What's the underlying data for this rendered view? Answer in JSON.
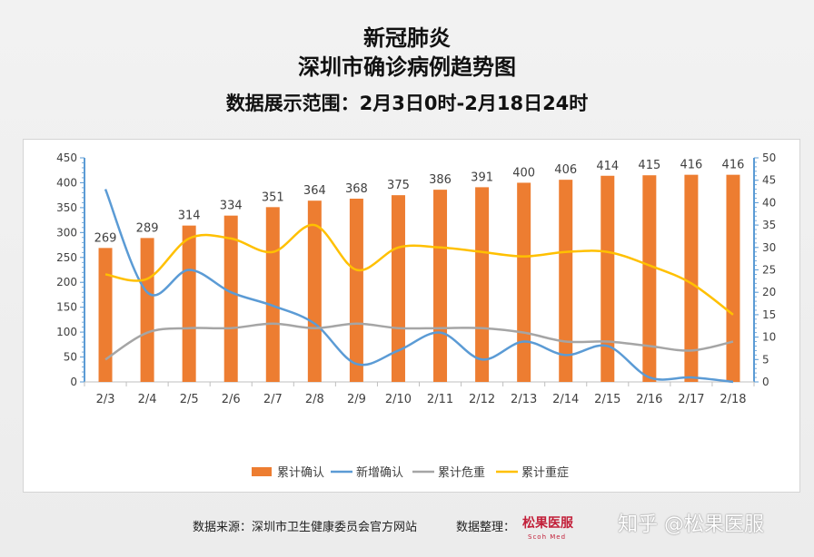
{
  "header": {
    "title_line1": "新冠肺炎",
    "title_line2": "深圳市确诊病例趋势图",
    "subtitle": "数据展示范围：2月3日0时-2月18日24时"
  },
  "footer": {
    "source": "数据来源：深圳市卫生健康委员会官方网站",
    "compiled": "数据整理：",
    "logo_text": "松果医服",
    "logo_sub": "Scoh Med",
    "watermark": "知乎 @松果医服"
  },
  "colors": {
    "cumulative_confirmed": "#ed7d31",
    "new_confirmed": "#5b9bd5",
    "cumulative_critical": "#a5a5a5",
    "cumulative_severe": "#ffc000",
    "axis": "#5b9bd5"
  },
  "chart_data": {
    "type": "bar",
    "categories": [
      "2/3",
      "2/4",
      "2/5",
      "2/6",
      "2/7",
      "2/8",
      "2/9",
      "2/10",
      "2/11",
      "2/12",
      "2/13",
      "2/14",
      "2/15",
      "2/16",
      "2/17",
      "2/18"
    ],
    "y_left": {
      "range": [
        0,
        450
      ],
      "ticks": [
        "0",
        "50",
        "100",
        "150",
        "200",
        "250",
        "300",
        "350",
        "400",
        "450"
      ]
    },
    "y_right": {
      "range": [
        0,
        50
      ],
      "ticks": [
        "0",
        "5",
        "10",
        "15",
        "20",
        "25",
        "30",
        "35",
        "40",
        "45",
        "50"
      ]
    },
    "legend_position": "bottom",
    "series": [
      {
        "name": "累计确认",
        "type": "bar",
        "axis": "left",
        "labels": true,
        "values": [
          269,
          289,
          314,
          334,
          351,
          364,
          368,
          375,
          386,
          391,
          400,
          406,
          414,
          415,
          416,
          416
        ]
      },
      {
        "name": "新增确认",
        "type": "line",
        "axis": "right",
        "values": [
          43,
          20,
          25,
          20,
          17,
          13,
          4,
          7,
          11,
          5,
          9,
          6,
          8,
          1,
          1,
          0
        ]
      },
      {
        "name": "累计危重",
        "type": "line",
        "axis": "right",
        "values": [
          5,
          11,
          12,
          12,
          13,
          12,
          13,
          12,
          12,
          12,
          11,
          9,
          9,
          8,
          7,
          9
        ]
      },
      {
        "name": "累计重症",
        "type": "line",
        "axis": "right",
        "values": [
          24,
          23,
          32,
          32,
          29,
          35,
          25,
          30,
          30,
          29,
          28,
          29,
          29,
          26,
          22,
          15
        ]
      }
    ]
  }
}
